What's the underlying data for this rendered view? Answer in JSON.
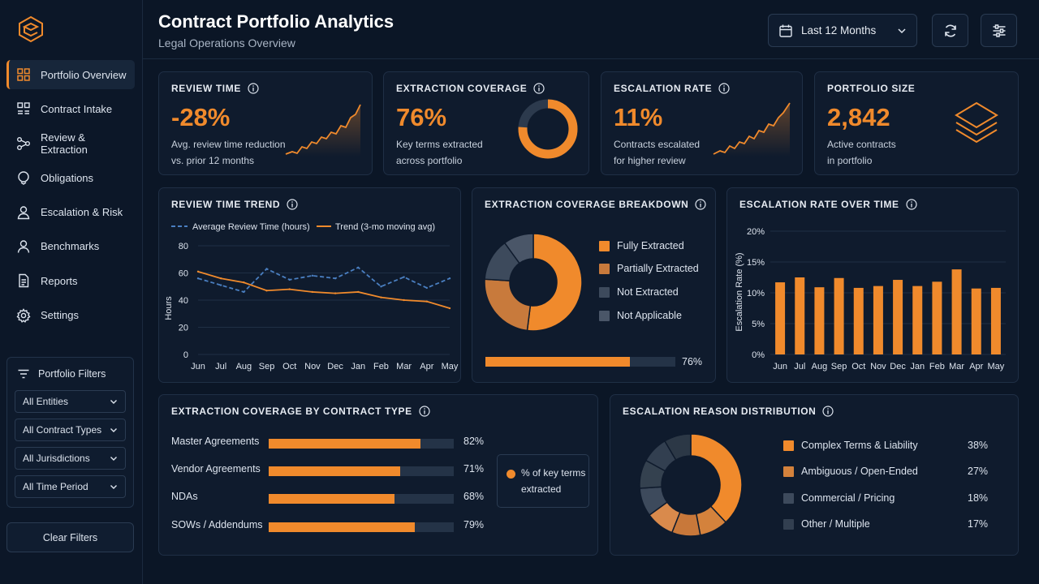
{
  "app": {
    "title": "Contract Portfolio Analytics",
    "subtitle": "Legal Operations Overview"
  },
  "sidebar": {
    "items": [
      {
        "label": "Portfolio Overview",
        "icon": "grid-icon",
        "active": true
      },
      {
        "label": "Contract Intake",
        "icon": "intake-icon",
        "active": false
      },
      {
        "label": "Review & Extraction",
        "icon": "workflow-icon",
        "active": false
      },
      {
        "label": "Obligations",
        "icon": "obligations-icon",
        "active": false
      },
      {
        "label": "Escalation & Risk",
        "icon": "user-risk-icon",
        "active": false
      },
      {
        "label": "Benchmarks",
        "icon": "person-icon",
        "active": false
      },
      {
        "label": "Reports",
        "icon": "document-icon",
        "active": false
      },
      {
        "label": "Settings",
        "icon": "gear-icon",
        "active": false
      }
    ],
    "filters": {
      "title": "Portfolio Filters",
      "selects": [
        "All Entities",
        "All Contract Types",
        "All Jurisdictions",
        "All Time Period"
      ],
      "clear_label": "Clear Filters"
    }
  },
  "header": {
    "date_range": "Last 12 Months"
  },
  "kpis": {
    "review_time": {
      "title": "REVIEW TIME",
      "value": "-28%",
      "desc1": "Avg. review time reduction",
      "desc2": "vs. prior 12 months"
    },
    "extraction_coverage": {
      "title": "EXTRACTION COVERAGE",
      "value": "76%",
      "desc1": "Key terms extracted",
      "desc2": "across portfolio",
      "ring_fraction": 0.76
    },
    "escalation_rate": {
      "title": "ESCALATION RATE",
      "value": "11%",
      "desc1": "Contracts escalated",
      "desc2": "for higher review"
    },
    "portfolio_size": {
      "title": "PORTFOLIO SIZE",
      "value": "2,842",
      "desc1": "Active contracts",
      "desc2": "in portfolio"
    }
  },
  "review_trend": {
    "title": "REVIEW TIME TREND",
    "legend_avg": "Average Review Time (hours)",
    "legend_trend": "Trend (3-mo moving avg)",
    "ylabel": "Hours"
  },
  "coverage_breakdown": {
    "title": "EXTRACTION COVERAGE BREAKDOWN",
    "legend": [
      "Fully Extracted",
      "Partially Extracted",
      "Not Extracted",
      "Not Applicable"
    ],
    "progress_label": "76%",
    "progress_value": 0.76
  },
  "escalation_over_time": {
    "title": "ESCALATION RATE OVER TIME",
    "ylabel": "Escalation Rate (%)"
  },
  "coverage_by_type": {
    "title": "EXTRACTION COVERAGE BY CONTRACT TYPE",
    "rows": [
      {
        "label": "Master Agreements",
        "pct": "82%",
        "value": 82
      },
      {
        "label": "Vendor Agreements",
        "pct": "71%",
        "value": 71
      },
      {
        "label": "NDAs",
        "pct": "68%",
        "value": 68
      },
      {
        "label": "SOWs / Addendums",
        "pct": "79%",
        "value": 79
      }
    ],
    "note": "% of key terms extracted"
  },
  "escalation_reasons": {
    "title": "ESCALATION REASON DISTRIBUTION",
    "rows": [
      {
        "label": "Complex Terms & Liability",
        "pct": "38%",
        "color": "#f08a2c"
      },
      {
        "label": "Ambiguous / Open-Ended",
        "pct": "27%",
        "color": "#d4823c"
      },
      {
        "label": "Commercial / Pricing",
        "pct": "18%",
        "color": "#3d4a5c"
      },
      {
        "label": "Other / Multiple",
        "pct": "17%",
        "color": "#323f50"
      }
    ]
  },
  "colors": {
    "accent": "#f08a2c",
    "accent_muted": "#c87a3c",
    "dark_slate": "#3d4a5c",
    "background": "#0b1626",
    "card": "#0f1b2d",
    "avg_line": "#4a7fc1"
  },
  "chart_data": [
    {
      "type": "line",
      "title": "REVIEW TIME TREND",
      "x": [
        "Jun",
        "Jul",
        "Aug",
        "Sep",
        "Oct",
        "Nov",
        "Dec",
        "Jan",
        "Feb",
        "Mar",
        "Apr",
        "May"
      ],
      "ylabel": "Hours",
      "ylim": [
        0,
        80
      ],
      "yticks": [
        0,
        20,
        40,
        60,
        80
      ],
      "series": [
        {
          "name": "Average Review Time (hours)",
          "style": "dashed",
          "color": "#4a7fc1",
          "values": [
            56,
            51,
            46,
            63,
            55,
            58,
            56,
            64,
            50,
            57,
            49,
            56
          ]
        },
        {
          "name": "Trend (3-mo moving avg)",
          "style": "solid",
          "color": "#f08a2c",
          "values": [
            61,
            56,
            53,
            47,
            48,
            46,
            45,
            46,
            42,
            40,
            39,
            34
          ]
        }
      ]
    },
    {
      "type": "pie",
      "title": "EXTRACTION COVERAGE BREAKDOWN",
      "categories": [
        "Fully Extracted",
        "Partially Extracted",
        "Not Extracted",
        "Not Applicable"
      ],
      "values": [
        52,
        24,
        14,
        10
      ],
      "colors": [
        "#f08a2c",
        "#c87a3c",
        "#3d4a5c",
        "#4a5668"
      ]
    },
    {
      "type": "bar",
      "title": "ESCALATION RATE OVER TIME",
      "categories": [
        "Jun",
        "Jul",
        "Aug",
        "Sep",
        "Oct",
        "Nov",
        "Dec",
        "Jan",
        "Feb",
        "Mar",
        "Apr",
        "May"
      ],
      "values": [
        11.7,
        12.5,
        10.9,
        12.4,
        10.8,
        11.1,
        12.1,
        11.1,
        11.8,
        13.8,
        10.7,
        10.8
      ],
      "ylabel": "Escalation Rate (%)",
      "ylim": [
        0,
        20
      ],
      "yticks": [
        "0%",
        "5%",
        "10%",
        "15%",
        "20%"
      ]
    },
    {
      "type": "bar",
      "title": "EXTRACTION COVERAGE BY CONTRACT TYPE",
      "categories": [
        "Master Agreements",
        "Vendor Agreements",
        "NDAs",
        "SOWs / Addendums"
      ],
      "values": [
        82,
        71,
        68,
        79
      ]
    },
    {
      "type": "pie",
      "title": "ESCALATION REASON DISTRIBUTION",
      "categories": [
        "Complex Terms & Liability",
        "Ambiguous / Open-Ended",
        "Commercial / Pricing",
        "Other / Multiple"
      ],
      "values": [
        38,
        27,
        18,
        17
      ]
    }
  ]
}
